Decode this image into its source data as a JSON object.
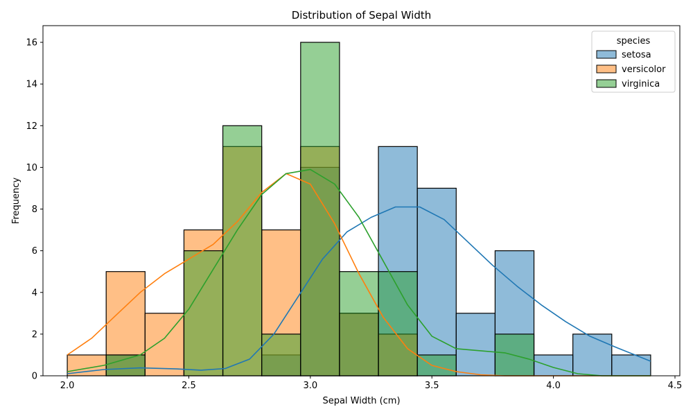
{
  "chart_data": {
    "type": "histogram",
    "title": "Distribution of Sepal Width",
    "xlabel": "Sepal Width (cm)",
    "ylabel": "Frequency",
    "xlim": [
      1.9,
      4.52
    ],
    "ylim": [
      0,
      16.8
    ],
    "xticks": [
      2.0,
      2.5,
      3.0,
      3.5,
      4.0,
      4.5
    ],
    "xtick_labels": [
      "2.0",
      "2.5",
      "3.0",
      "3.5",
      "4.0",
      "4.5"
    ],
    "yticks": [
      0,
      2,
      4,
      6,
      8,
      10,
      12,
      14,
      16
    ],
    "ytick_labels": [
      "0",
      "2",
      "4",
      "6",
      "8",
      "10",
      "12",
      "14",
      "16"
    ],
    "bin_edges": [
      2.0,
      2.16,
      2.32,
      2.48,
      2.64,
      2.8,
      2.96,
      3.12,
      3.28,
      3.44,
      3.6,
      3.76,
      3.92,
      4.08,
      4.24,
      4.4
    ],
    "legend": {
      "title": "species",
      "placement": "top-right"
    },
    "series": [
      {
        "name": "setosa",
        "color": "#1f77b4",
        "values": [
          0,
          1,
          0,
          0,
          0,
          1,
          10,
          3,
          11,
          9,
          3,
          6,
          1,
          2,
          1
        ],
        "kde": [
          [
            2.0,
            0.1
          ],
          [
            2.15,
            0.3
          ],
          [
            2.3,
            0.38
          ],
          [
            2.45,
            0.33
          ],
          [
            2.55,
            0.27
          ],
          [
            2.65,
            0.35
          ],
          [
            2.75,
            0.8
          ],
          [
            2.85,
            2.0
          ],
          [
            2.95,
            3.8
          ],
          [
            3.05,
            5.6
          ],
          [
            3.15,
            6.9
          ],
          [
            3.25,
            7.6
          ],
          [
            3.35,
            8.1
          ],
          [
            3.45,
            8.1
          ],
          [
            3.55,
            7.5
          ],
          [
            3.65,
            6.4
          ],
          [
            3.75,
            5.3
          ],
          [
            3.85,
            4.3
          ],
          [
            3.95,
            3.4
          ],
          [
            4.05,
            2.6
          ],
          [
            4.15,
            1.9
          ],
          [
            4.25,
            1.4
          ],
          [
            4.4,
            0.7
          ]
        ]
      },
      {
        "name": "versicolor",
        "color": "#ff7f0e",
        "values": [
          1,
          5,
          3,
          7,
          11,
          7,
          11,
          3,
          2,
          0,
          0,
          0,
          0,
          0,
          0
        ],
        "kde": [
          [
            2.0,
            1.0
          ],
          [
            2.1,
            1.8
          ],
          [
            2.2,
            2.9
          ],
          [
            2.3,
            4.0
          ],
          [
            2.4,
            4.9
          ],
          [
            2.5,
            5.6
          ],
          [
            2.6,
            6.3
          ],
          [
            2.7,
            7.4
          ],
          [
            2.8,
            8.8
          ],
          [
            2.9,
            9.7
          ],
          [
            3.0,
            9.2
          ],
          [
            3.1,
            7.3
          ],
          [
            3.2,
            4.9
          ],
          [
            3.3,
            2.8
          ],
          [
            3.4,
            1.3
          ],
          [
            3.5,
            0.5
          ],
          [
            3.6,
            0.2
          ],
          [
            3.7,
            0.05
          ],
          [
            3.8,
            0.0
          ],
          [
            4.4,
            0.0
          ]
        ]
      },
      {
        "name": "virginica",
        "color": "#2ca02c",
        "values": [
          0,
          1,
          0,
          6,
          12,
          2,
          16,
          5,
          5,
          1,
          0,
          2,
          0,
          0,
          0
        ],
        "kde": [
          [
            2.0,
            0.2
          ],
          [
            2.15,
            0.5
          ],
          [
            2.3,
            1.0
          ],
          [
            2.4,
            1.8
          ],
          [
            2.5,
            3.2
          ],
          [
            2.6,
            5.1
          ],
          [
            2.7,
            7.0
          ],
          [
            2.8,
            8.7
          ],
          [
            2.9,
            9.7
          ],
          [
            3.0,
            9.9
          ],
          [
            3.1,
            9.2
          ],
          [
            3.2,
            7.6
          ],
          [
            3.3,
            5.5
          ],
          [
            3.4,
            3.4
          ],
          [
            3.5,
            1.9
          ],
          [
            3.6,
            1.3
          ],
          [
            3.7,
            1.2
          ],
          [
            3.8,
            1.1
          ],
          [
            3.9,
            0.8
          ],
          [
            4.0,
            0.4
          ],
          [
            4.1,
            0.1
          ],
          [
            4.2,
            0.0
          ],
          [
            4.4,
            0.0
          ]
        ]
      }
    ]
  }
}
